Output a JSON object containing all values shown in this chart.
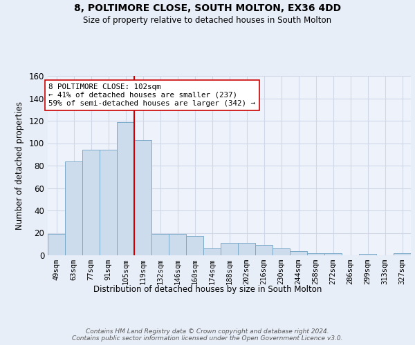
{
  "title1": "8, POLTIMORE CLOSE, SOUTH MOLTON, EX36 4DD",
  "title2": "Size of property relative to detached houses in South Molton",
  "xlabel": "Distribution of detached houses by size in South Molton",
  "ylabel": "Number of detached properties",
  "categories": [
    "49sqm",
    "63sqm",
    "77sqm",
    "91sqm",
    "105sqm",
    "119sqm",
    "132sqm",
    "146sqm",
    "160sqm",
    "174sqm",
    "188sqm",
    "202sqm",
    "216sqm",
    "230sqm",
    "244sqm",
    "258sqm",
    "272sqm",
    "286sqm",
    "299sqm",
    "313sqm",
    "327sqm"
  ],
  "values": [
    19,
    84,
    94,
    94,
    119,
    103,
    19,
    19,
    17,
    6,
    11,
    11,
    9,
    6,
    4,
    2,
    2,
    0,
    1,
    0,
    2
  ],
  "bar_color": "#ccdcec",
  "bar_edge_color": "#7aaac8",
  "grid_color": "#d0d8e8",
  "annotation_text": "8 POLTIMORE CLOSE: 102sqm\n← 41% of detached houses are smaller (237)\n59% of semi-detached houses are larger (342) →",
  "vline_x": 4.5,
  "vline_color": "#cc0000",
  "ylim": [
    0,
    160
  ],
  "yticks": [
    0,
    20,
    40,
    60,
    80,
    100,
    120,
    140,
    160
  ],
  "footer": "Contains HM Land Registry data © Crown copyright and database right 2024.\nContains public sector information licensed under the Open Government Licence v3.0.",
  "bg_color": "#e8eef8",
  "plot_bg_color": "#eef2fa"
}
